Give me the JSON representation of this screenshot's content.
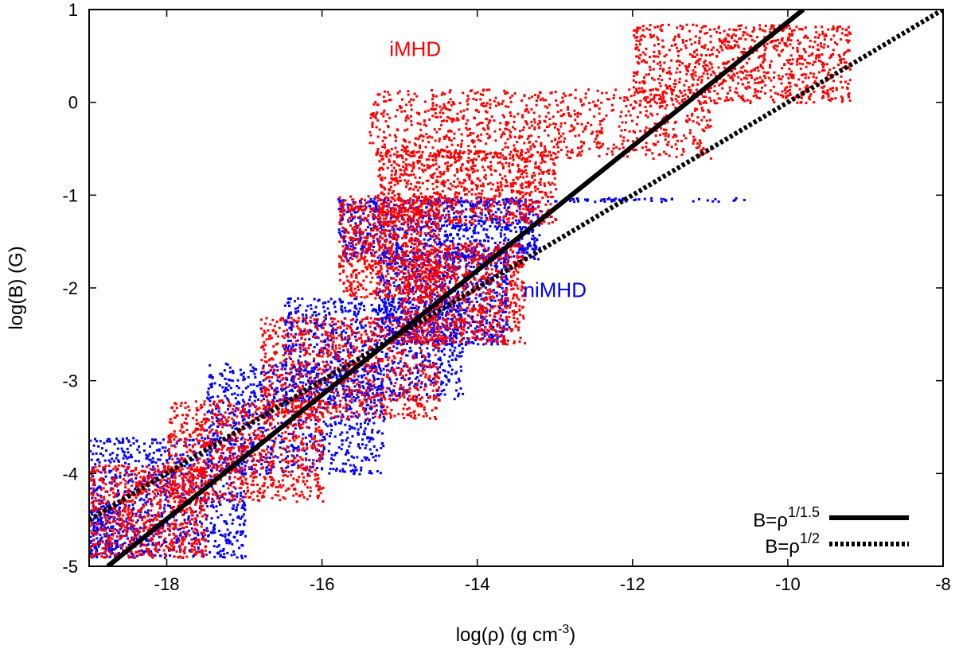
{
  "chart_data": {
    "type": "scatter",
    "title": "",
    "xlabel": "log(ρ) (g cm",
    "xlabel_sup": "-3",
    "xlabel_end": ")",
    "ylabel": "log(B) (G)",
    "xlim": [
      -19,
      -8
    ],
    "ylim": [
      -5,
      1
    ],
    "xticks": [
      -18,
      -16,
      -14,
      -12,
      -10,
      -8
    ],
    "yticks": [
      1,
      0,
      -1,
      -2,
      -3,
      -4,
      -5
    ],
    "xtick_labels": [
      "-18",
      "-16",
      "-14",
      "-12",
      "-10",
      "-8"
    ],
    "ytick_labels": [
      "1",
      "0",
      "-1",
      "-2",
      "-3",
      "-4",
      "-5"
    ],
    "grid": false,
    "legend_position": "bottom-right",
    "colors": {
      "imhd": "#ff0000",
      "nimhd": "#0000ff",
      "line": "#000000"
    },
    "annotations": [
      {
        "text": "iMHD",
        "x": -14.8,
        "y": 0.5,
        "color": "#ff0000"
      },
      {
        "text": "niMHD",
        "x": -13.0,
        "y": -2.1,
        "color": "#0000ff"
      }
    ],
    "series": [
      {
        "name": "niMHD",
        "kind": "scatter-density",
        "color": "#0000ff",
        "regions": [
          {
            "x": [
              -15.85,
              -10.55
            ],
            "y": [
              -1.06,
              -1.02
            ]
          },
          {
            "x": [
              -15.8,
              -13.2
            ],
            "y": [
              -1.7,
              -1.05
            ]
          },
          {
            "x": [
              -15.3,
              -13.6
            ],
            "y": [
              -2.6,
              -1.6
            ]
          },
          {
            "x": [
              -16.5,
              -14.2
            ],
            "y": [
              -3.2,
              -2.1
            ]
          },
          {
            "x": [
              -17.5,
              -15.2
            ],
            "y": [
              -4.0,
              -2.8
            ]
          },
          {
            "x": [
              -19.0,
              -17.0
            ],
            "y": [
              -4.9,
              -3.6
            ]
          },
          {
            "x": [
              -19.0,
              -18.6
            ],
            "y": [
              -4.9,
              -4.3
            ]
          }
        ]
      },
      {
        "name": "iMHD",
        "kind": "scatter-density",
        "color": "#ff0000",
        "regions": [
          {
            "x": [
              -15.4,
              -11.0
            ],
            "y": [
              -0.6,
              0.15
            ]
          },
          {
            "x": [
              -12.0,
              -9.2
            ],
            "y": [
              0.0,
              0.85
            ]
          },
          {
            "x": [
              -15.3,
              -13.0
            ],
            "y": [
              -1.3,
              -0.5
            ]
          },
          {
            "x": [
              -15.8,
              -14.5
            ],
            "y": [
              -2.1,
              -1.0
            ]
          },
          {
            "x": [
              -15.0,
              -13.4
            ],
            "y": [
              -2.6,
              -1.5
            ]
          },
          {
            "x": [
              -16.8,
              -14.5
            ],
            "y": [
              -3.4,
              -2.3
            ]
          },
          {
            "x": [
              -18.0,
              -16.0
            ],
            "y": [
              -4.3,
              -3.2
            ]
          },
          {
            "x": [
              -19.0,
              -17.5
            ],
            "y": [
              -4.9,
              -3.9
            ]
          }
        ]
      },
      {
        "name": "B=ρ^1/1.5",
        "kind": "line",
        "style": "solid",
        "x": [
          -18.76,
          -9.8
        ],
        "y": [
          -5.0,
          1.0
        ]
      },
      {
        "name": "B=ρ^1/2",
        "kind": "line",
        "style": "dashed",
        "x": [
          -19.0,
          -8.0
        ],
        "y": [
          -4.5,
          1.0
        ]
      }
    ],
    "legend": [
      {
        "base": "B=ρ",
        "sup": "1/1.5",
        "style": "solid"
      },
      {
        "base": "B=ρ",
        "sup": "1/2",
        "style": "dashed"
      }
    ]
  }
}
